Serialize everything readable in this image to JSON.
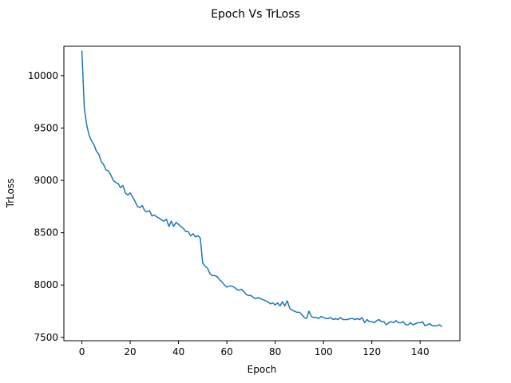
{
  "chart_data": {
    "type": "line",
    "title": "Epoch Vs TrLoss",
    "xlabel": "Epoch",
    "ylabel": "TrLoss",
    "xlim": [
      -7.45,
      156.45
    ],
    "ylim": [
      7468,
      10281
    ],
    "xticks": [
      0,
      20,
      40,
      60,
      80,
      100,
      120,
      140
    ],
    "yticks": [
      7500,
      8000,
      8500,
      9000,
      9500,
      10000
    ],
    "grid": false,
    "series": [
      {
        "color": "#1f77b4",
        "x": [
          0,
          1,
          2,
          3,
          4,
          5,
          6,
          7,
          8,
          9,
          10,
          11,
          12,
          13,
          14,
          15,
          16,
          17,
          18,
          19,
          20,
          21,
          22,
          23,
          24,
          25,
          26,
          27,
          28,
          29,
          30,
          31,
          32,
          33,
          34,
          35,
          36,
          37,
          38,
          39,
          40,
          41,
          42,
          43,
          44,
          45,
          46,
          47,
          48,
          49,
          50,
          51,
          52,
          53,
          54,
          55,
          56,
          57,
          58,
          59,
          60,
          61,
          62,
          63,
          64,
          65,
          66,
          67,
          68,
          69,
          70,
          71,
          72,
          73,
          74,
          75,
          76,
          77,
          78,
          79,
          80,
          81,
          82,
          83,
          84,
          85,
          86,
          87,
          88,
          89,
          90,
          91,
          92,
          93,
          94,
          95,
          96,
          97,
          98,
          99,
          100,
          101,
          102,
          103,
          104,
          105,
          106,
          107,
          108,
          109,
          110,
          111,
          112,
          113,
          114,
          115,
          116,
          117,
          118,
          119,
          120,
          121,
          122,
          123,
          124,
          125,
          126,
          127,
          128,
          129,
          130,
          131,
          132,
          133,
          134,
          135,
          136,
          137,
          138,
          139,
          140,
          141,
          142,
          143,
          144,
          145,
          146,
          147,
          148,
          149
        ],
        "y": [
          10240,
          9690,
          9530,
          9430,
          9380,
          9340,
          9280,
          9250,
          9180,
          9150,
          9100,
          9090,
          9050,
          9000,
          8980,
          8970,
          8930,
          8950,
          8880,
          8860,
          8880,
          8840,
          8800,
          8750,
          8740,
          8760,
          8710,
          8700,
          8710,
          8660,
          8670,
          8650,
          8640,
          8620,
          8610,
          8630,
          8560,
          8610,
          8560,
          8600,
          8580,
          8560,
          8540,
          8510,
          8510,
          8470,
          8490,
          8460,
          8470,
          8450,
          8210,
          8180,
          8160,
          8110,
          8090,
          8090,
          8080,
          8050,
          8030,
          8000,
          7980,
          7990,
          7990,
          7980,
          7960,
          7950,
          7960,
          7940,
          7910,
          7900,
          7900,
          7880,
          7870,
          7880,
          7870,
          7860,
          7850,
          7840,
          7820,
          7830,
          7810,
          7830,
          7800,
          7840,
          7800,
          7850,
          7780,
          7760,
          7750,
          7740,
          7740,
          7720,
          7690,
          7680,
          7750,
          7700,
          7690,
          7690,
          7680,
          7700,
          7690,
          7680,
          7680,
          7690,
          7670,
          7680,
          7670,
          7690,
          7670,
          7670,
          7670,
          7680,
          7680,
          7670,
          7680,
          7670,
          7690,
          7640,
          7670,
          7650,
          7650,
          7640,
          7660,
          7670,
          7650,
          7650,
          7620,
          7640,
          7650,
          7640,
          7660,
          7640,
          7640,
          7650,
          7620,
          7620,
          7640,
          7620,
          7630,
          7640,
          7640,
          7650,
          7610,
          7620,
          7630,
          7610,
          7610,
          7610,
          7620,
          7600
        ]
      }
    ]
  }
}
